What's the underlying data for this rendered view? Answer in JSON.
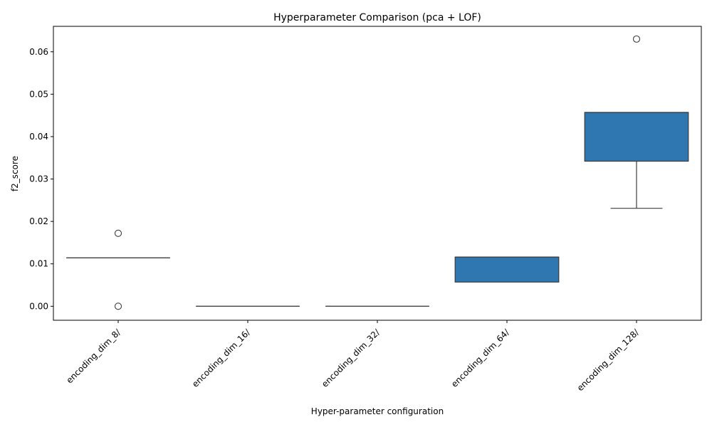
{
  "chart_data": {
    "type": "box",
    "title": "Hyperparameter Comparison (pca + LOF)",
    "xlabel": "Hyper-parameter configuration",
    "ylabel": "f2_score",
    "ylim": [
      -0.0033,
      0.066
    ],
    "yticks": [
      0.0,
      0.01,
      0.02,
      0.03,
      0.04,
      0.05,
      0.06
    ],
    "ytick_labels": [
      "0.00",
      "0.01",
      "0.02",
      "0.03",
      "0.04",
      "0.05",
      "0.06"
    ],
    "grid": false,
    "box_color": "#2f77b1",
    "edge_color": "#3d3d3d",
    "categories": [
      "encoding_dim_8/",
      "encoding_dim_16/",
      "encoding_dim_32/",
      "encoding_dim_64/",
      "encoding_dim_128/"
    ],
    "boxes": [
      {
        "whisker_low": 0.0114,
        "q1": 0.0114,
        "median": 0.0114,
        "q3": 0.0114,
        "whisker_high": 0.0114,
        "outliers": [
          0.0172,
          0.0
        ]
      },
      {
        "whisker_low": 0.0,
        "q1": 0.0,
        "median": 0.0,
        "q3": 0.0,
        "whisker_high": 0.0,
        "outliers": []
      },
      {
        "whisker_low": 0.0,
        "q1": 0.0,
        "median": 0.0,
        "q3": 0.0,
        "whisker_high": 0.0,
        "outliers": []
      },
      {
        "whisker_low": 0.0057,
        "q1": 0.0057,
        "median": 0.0116,
        "q3": 0.0116,
        "whisker_high": 0.0116,
        "outliers": []
      },
      {
        "whisker_low": 0.0231,
        "q1": 0.0342,
        "median": 0.0457,
        "q3": 0.0457,
        "whisker_high": 0.0457,
        "outliers": [
          0.063
        ]
      }
    ]
  }
}
